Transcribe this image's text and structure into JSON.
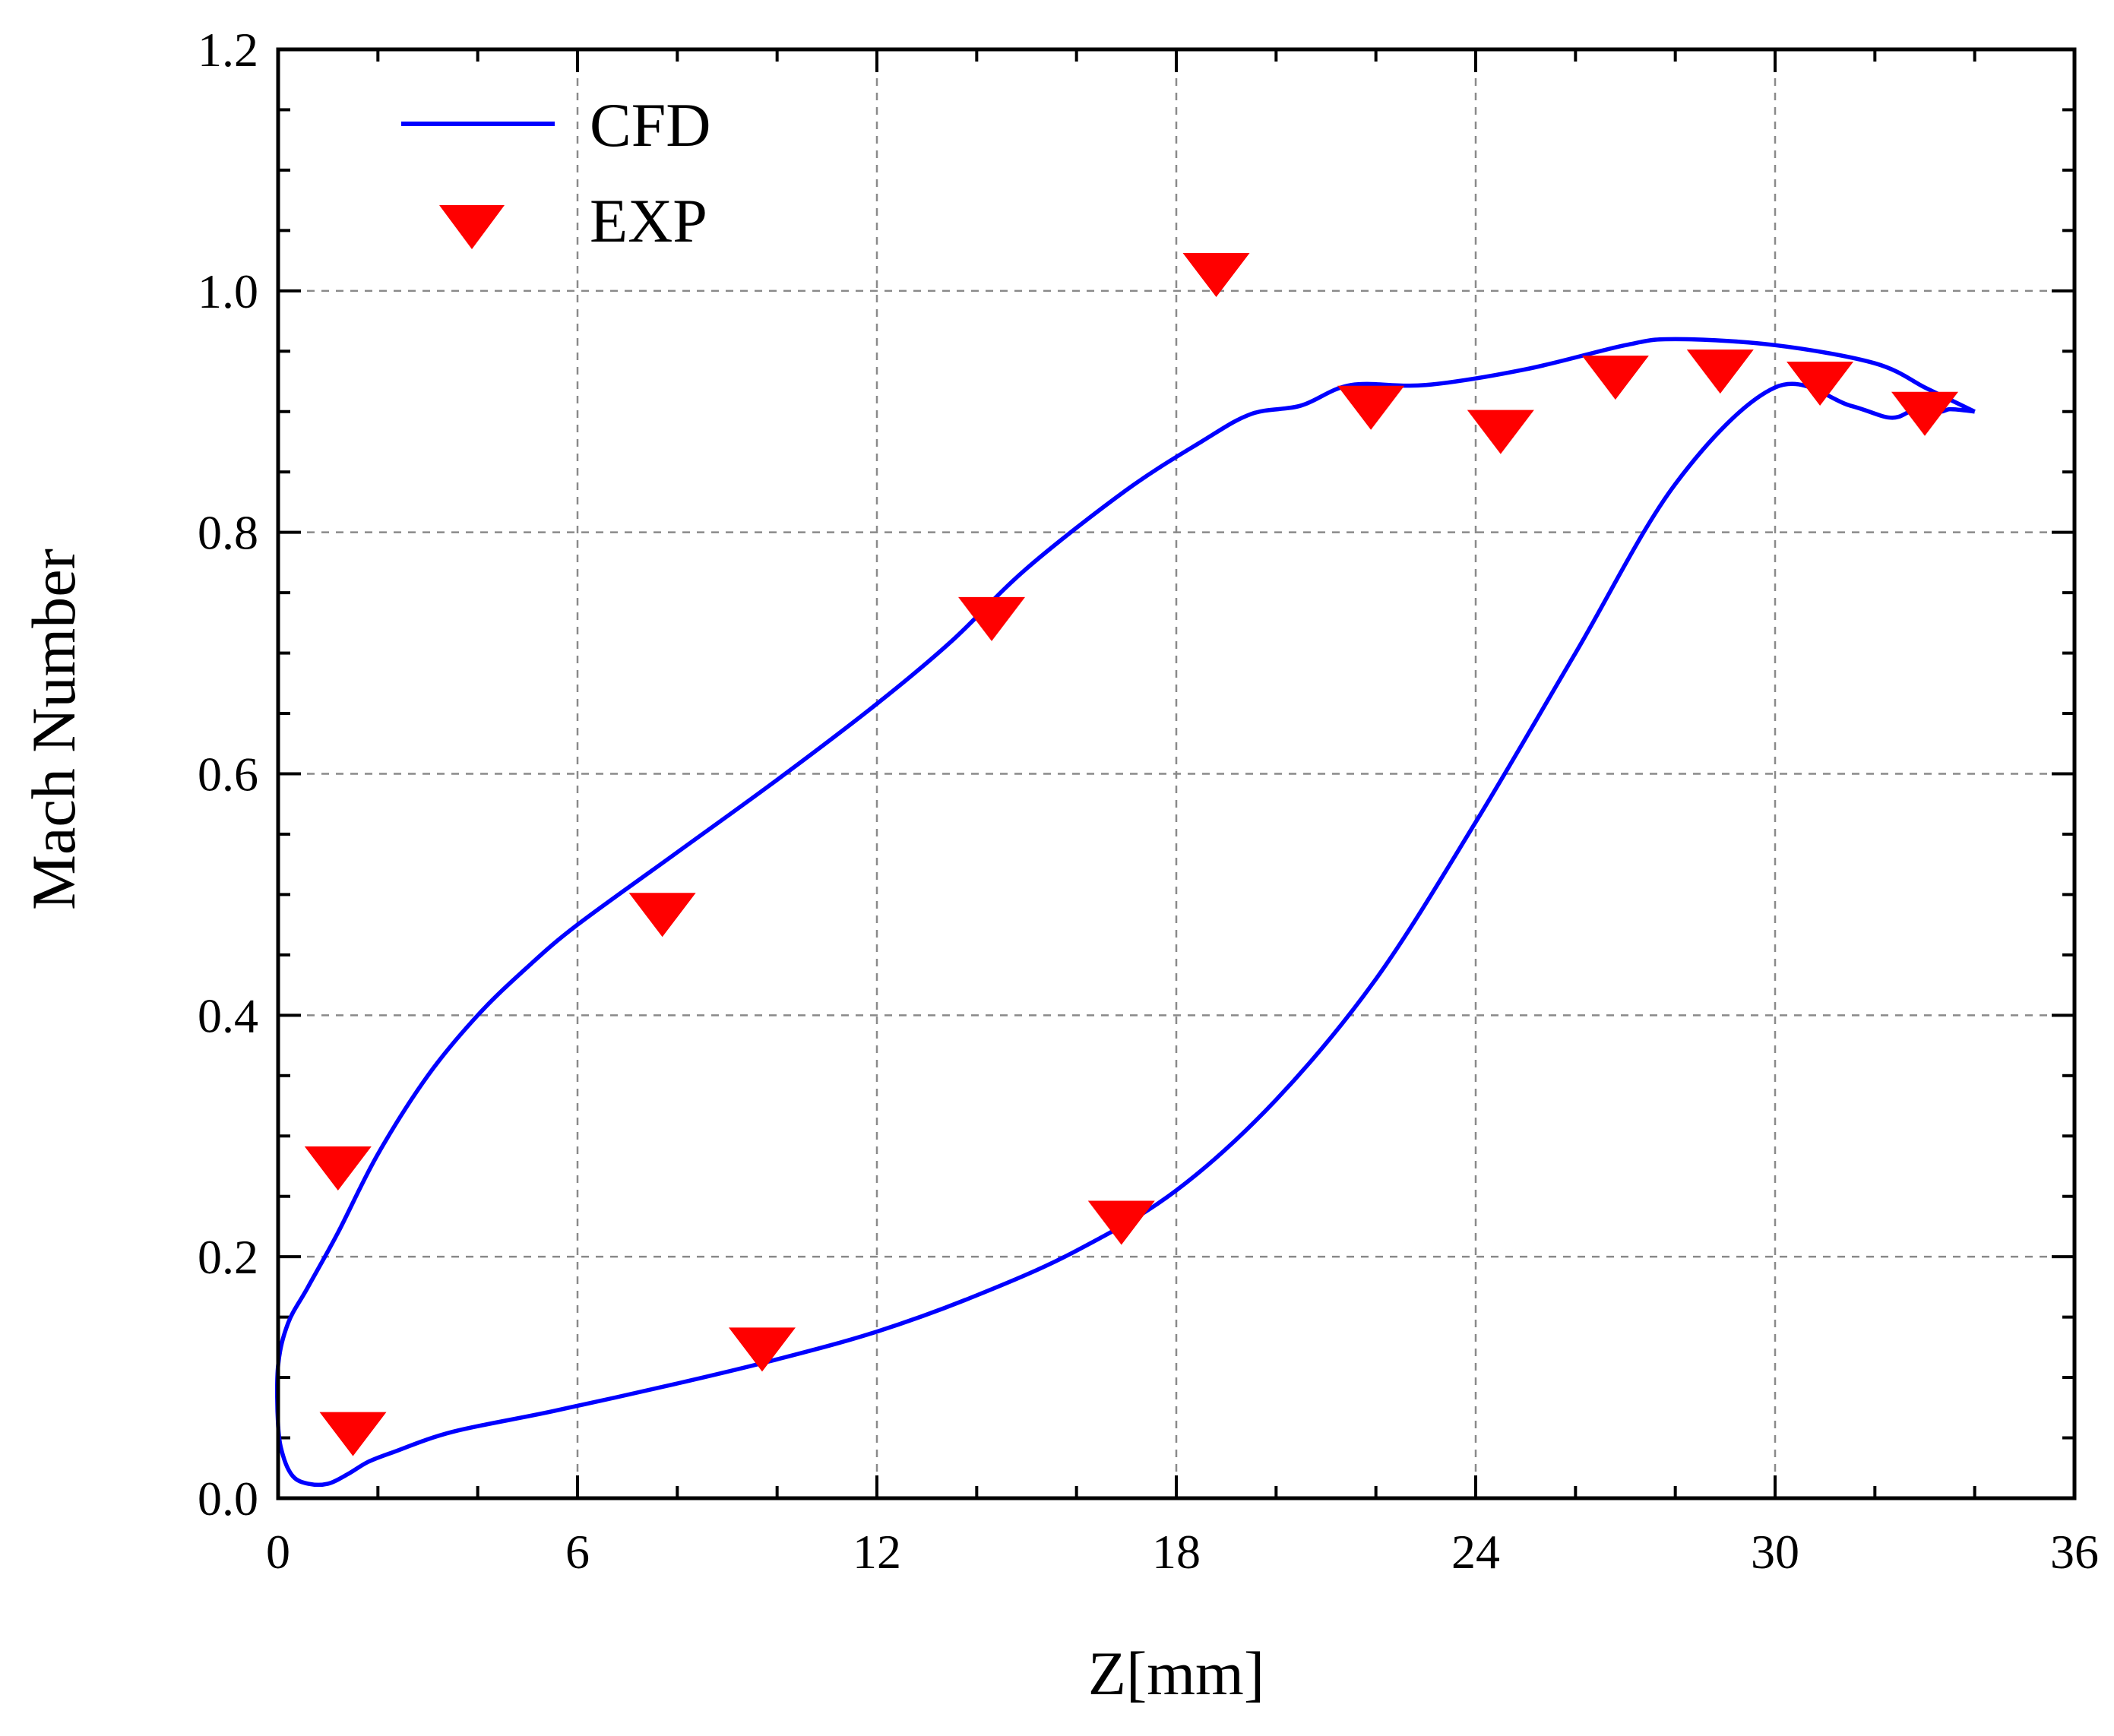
{
  "chart_data": {
    "type": "line",
    "title": "",
    "xlabel": "Z[mm]",
    "ylabel": "Mach Number",
    "xlim": [
      0,
      36
    ],
    "ylim": [
      0,
      1.2
    ],
    "xticks": [
      0,
      6,
      12,
      18,
      24,
      30,
      36
    ],
    "yticks": [
      0.0,
      0.2,
      0.4,
      0.6,
      0.8,
      1.0,
      1.2
    ],
    "xtick_labels": [
      "0",
      "6",
      "12",
      "18",
      "24",
      "30",
      "36"
    ],
    "ytick_labels": [
      "0.0",
      "0.2",
      "0.4",
      "0.6",
      "0.8",
      "1.0",
      "1.2"
    ],
    "grid": true,
    "legend_position": "top-left",
    "series": [
      {
        "name": "CFD",
        "kind": "line",
        "color": "#0000ff",
        "x": [
          34.0,
          33.5,
          33.0,
          32.0,
          30.0,
          28.0,
          27.0,
          25.0,
          23.0,
          21.5,
          20.5,
          19.5,
          18.5,
          17.0,
          15.0,
          13.5,
          12.0,
          10.0,
          8.0,
          6.0,
          5.0,
          4.0,
          3.0,
          2.0,
          1.2,
          0.6,
          0.2,
          0.0,
          0.0,
          0.1,
          0.3,
          0.6,
          1.0,
          1.4,
          1.8,
          2.3,
          3.5,
          5.5,
          8.0,
          10.0,
          12.0,
          14.0,
          16.0,
          18.0,
          20.0,
          22.0,
          24.0,
          26.0,
          28.0,
          30.0,
          31.5,
          32.3,
          32.7,
          33.0,
          33.3,
          33.5,
          33.8,
          34.0
        ],
        "y": [
          0.9,
          0.91,
          0.92,
          0.94,
          0.955,
          0.96,
          0.955,
          0.935,
          0.922,
          0.922,
          0.905,
          0.898,
          0.875,
          0.835,
          0.77,
          0.71,
          0.658,
          0.595,
          0.535,
          0.475,
          0.44,
          0.4,
          0.35,
          0.285,
          0.22,
          0.175,
          0.145,
          0.11,
          0.06,
          0.035,
          0.018,
          0.012,
          0.012,
          0.02,
          0.03,
          0.038,
          0.055,
          0.072,
          0.095,
          0.115,
          0.138,
          0.168,
          0.205,
          0.255,
          0.33,
          0.43,
          0.56,
          0.7,
          0.84,
          0.92,
          0.905,
          0.895,
          0.9,
          0.905,
          0.9,
          0.902,
          0.901,
          0.9
        ]
      },
      {
        "name": "EXP",
        "kind": "scatter",
        "marker": "triangle-down",
        "color": "#ff0000",
        "x": [
          1.2,
          1.5,
          7.7,
          9.7,
          14.3,
          16.9,
          18.8,
          21.9,
          24.5,
          26.8,
          28.9,
          30.9,
          33.0
        ],
        "y": [
          0.275,
          0.055,
          0.485,
          0.125,
          0.73,
          0.23,
          1.015,
          0.905,
          0.885,
          0.93,
          0.935,
          0.925,
          0.9
        ]
      }
    ]
  }
}
